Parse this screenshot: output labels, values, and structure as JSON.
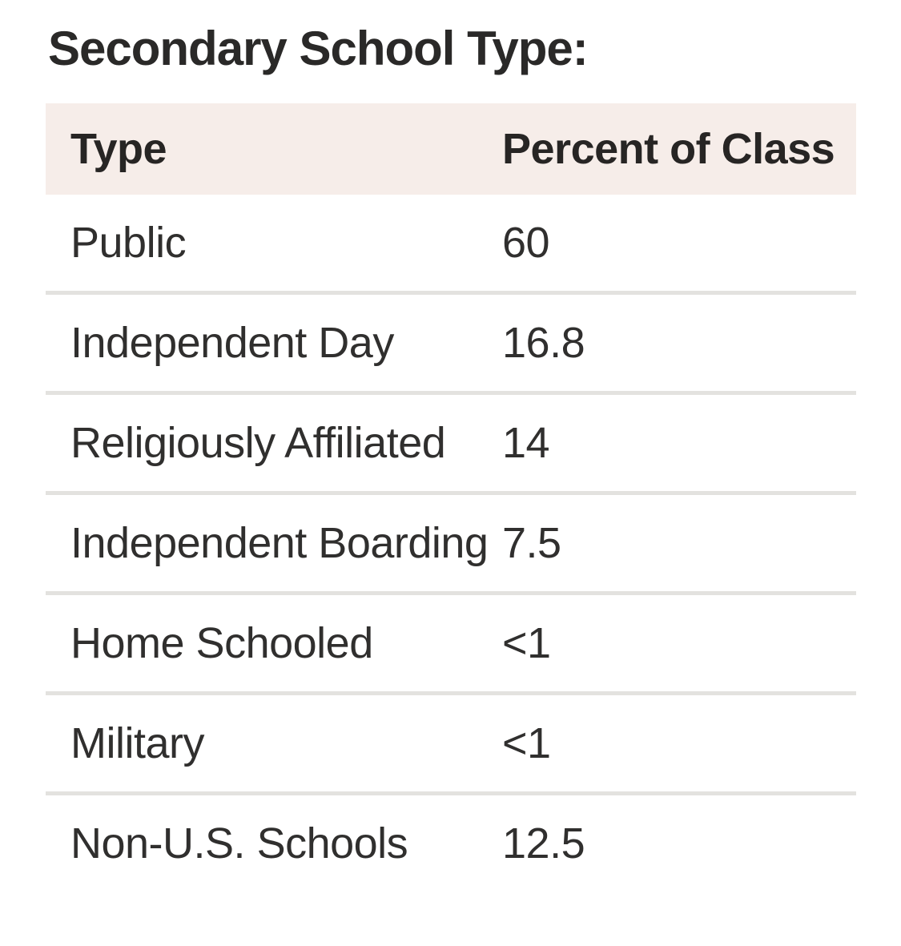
{
  "title": "Secondary School Type:",
  "table": {
    "header_bg_color": "#f6ede9",
    "divider_color": "#e3e2df",
    "text_color": "#302f2e",
    "columns": {
      "type_label": "Type",
      "percent_label": "Percent of Class"
    },
    "rows": [
      {
        "type": "Public",
        "percent": "60"
      },
      {
        "type": "Independent Day",
        "percent": "16.8"
      },
      {
        "type": "Religiously Affiliated",
        "percent": "14"
      },
      {
        "type": "Independent Boarding",
        "percent": "7.5"
      },
      {
        "type": "Home Schooled",
        "percent": "<1"
      },
      {
        "type": "Military",
        "percent": "<1"
      },
      {
        "type": "Non-U.S. Schools",
        "percent": "12.5"
      }
    ]
  }
}
